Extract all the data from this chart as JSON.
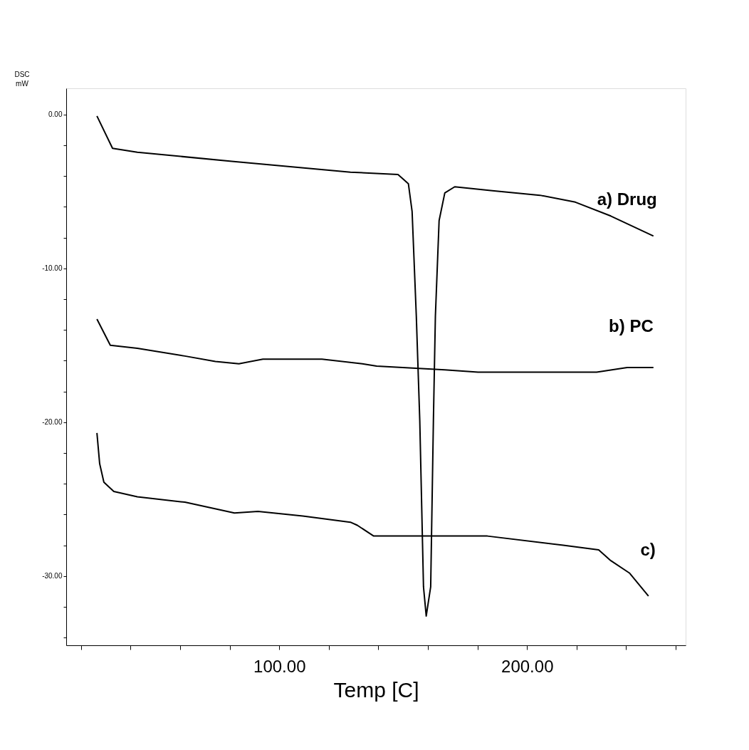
{
  "chart_data": {
    "type": "line",
    "xlabel": "Temp [C]",
    "ylabel": "DSC\nmW",
    "xlim": [
      14,
      264
    ],
    "ylim": [
      -34.5,
      1.7
    ],
    "xticks": [
      {
        "value": 20,
        "label": null
      },
      {
        "value": 40,
        "label": null
      },
      {
        "value": 60,
        "label": null
      },
      {
        "value": 80,
        "label": null
      },
      {
        "value": 100,
        "label": "100.00"
      },
      {
        "value": 120,
        "label": null
      },
      {
        "value": 140,
        "label": null
      },
      {
        "value": 160,
        "label": null
      },
      {
        "value": 180,
        "label": null
      },
      {
        "value": 200,
        "label": "200.00"
      },
      {
        "value": 220,
        "label": null
      },
      {
        "value": 240,
        "label": null
      },
      {
        "value": 260,
        "label": null
      }
    ],
    "yticks": [
      {
        "value": 0,
        "label": "0.00"
      },
      {
        "value": -2,
        "label": null
      },
      {
        "value": -4,
        "label": null
      },
      {
        "value": -6,
        "label": null
      },
      {
        "value": -8,
        "label": null
      },
      {
        "value": -10,
        "label": "-10.00"
      },
      {
        "value": -12,
        "label": null
      },
      {
        "value": -14,
        "label": null
      },
      {
        "value": -16,
        "label": null
      },
      {
        "value": -18,
        "label": null
      },
      {
        "value": -20,
        "label": "-20.00"
      },
      {
        "value": -22,
        "label": null
      },
      {
        "value": -24,
        "label": null
      },
      {
        "value": -26,
        "label": null
      },
      {
        "value": -28,
        "label": null
      },
      {
        "value": -30,
        "label": "-30.00"
      },
      {
        "value": -32,
        "label": null
      },
      {
        "value": -34,
        "label": null
      }
    ],
    "grid": false,
    "marker": "none",
    "line_style": "solid",
    "series": [
      {
        "name": "a) Drug",
        "color": "#000000",
        "x": [
          26.4,
          32.7,
          42.7,
          80.8,
          128.7,
          147.9,
          152.1,
          153.6,
          155.3,
          156.7,
          158.2,
          159.3,
          161.1,
          162.2,
          163.0,
          164.5,
          166.8,
          170.8,
          186.0,
          205.2,
          219.5,
          233.8,
          251.0
        ],
        "values": [
          -0.1,
          -2.2,
          -2.45,
          -3.05,
          -3.75,
          -3.9,
          -4.5,
          -6.3,
          -13.1,
          -19.9,
          -30.7,
          -32.6,
          -30.7,
          -19.9,
          -13.1,
          -6.9,
          -5.1,
          -4.7,
          -4.95,
          -5.25,
          -5.7,
          -6.6,
          -7.9
        ]
      },
      {
        "name": "b) PC",
        "color": "#000000",
        "x": [
          26.4,
          31.8,
          42.7,
          61.9,
          74.2,
          83.7,
          93.4,
          117.2,
          133.5,
          139.3,
          166.8,
          180.2,
          228.1,
          240.4,
          251.0
        ],
        "values": [
          -13.3,
          -15.0,
          -15.2,
          -15.7,
          -16.05,
          -16.2,
          -15.9,
          -15.9,
          -16.2,
          -16.35,
          -16.6,
          -16.75,
          -16.75,
          -16.45,
          -16.45
        ]
      },
      {
        "name": "c)",
        "color": "#000000",
        "x": [
          26.4,
          27.5,
          29.2,
          33.2,
          42.7,
          61.9,
          81.9,
          91.4,
          109.5,
          128.7,
          131.5,
          138.1,
          184.0,
          214.6,
          228.9,
          233.8,
          241.3,
          249.0
        ],
        "values": [
          -20.7,
          -22.7,
          -23.9,
          -24.5,
          -24.85,
          -25.2,
          -25.9,
          -25.8,
          -26.1,
          -26.5,
          -26.7,
          -27.4,
          -27.4,
          -28.0,
          -28.3,
          -29.0,
          -29.8,
          -31.3
        ]
      }
    ]
  }
}
